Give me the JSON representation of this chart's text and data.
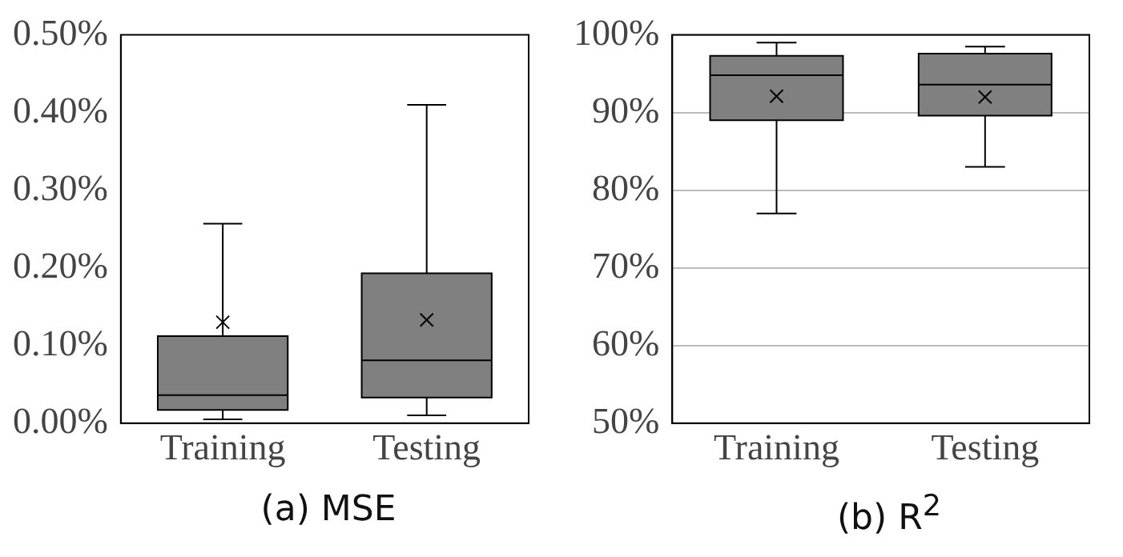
{
  "chart_data": [
    {
      "type": "box",
      "title": "(a)  MSE",
      "categories": [
        "Training",
        "Testing"
      ],
      "color": "#808080",
      "grid": false,
      "ylim": [
        0,
        0.5
      ],
      "yticks": [
        {
          "value": 0,
          "label": "0.00%"
        },
        {
          "value": 0.1,
          "label": "0.10%"
        },
        {
          "value": 0.2,
          "label": "0.20%"
        },
        {
          "value": 0.3,
          "label": "0.30%"
        },
        {
          "value": 0.4,
          "label": "0.40%"
        },
        {
          "value": 0.5,
          "label": "0.50%"
        }
      ],
      "boxes": [
        {
          "low": 0.005,
          "q1": 0.017,
          "median": 0.036,
          "q3": 0.112,
          "high": 0.257,
          "mean": 0.13
        },
        {
          "low": 0.01,
          "q1": 0.033,
          "median": 0.081,
          "q3": 0.193,
          "high": 0.41,
          "mean": 0.133
        }
      ]
    },
    {
      "type": "box",
      "title": "(b) R$^{2}$",
      "categories": [
        "Training",
        "Testing"
      ],
      "color": "#808080",
      "grid": "y",
      "ylim": [
        50,
        100
      ],
      "yticks": [
        {
          "value": 50,
          "label": "50%"
        },
        {
          "value": 60,
          "label": "60%"
        },
        {
          "value": 70,
          "label": "70%"
        },
        {
          "value": 80,
          "label": "80%"
        },
        {
          "value": 90,
          "label": "90%"
        },
        {
          "value": 100,
          "label": "100%"
        }
      ],
      "boxes": [
        {
          "low": 77,
          "q1": 89,
          "median": 94.8,
          "q3": 97.3,
          "high": 99,
          "mean": 92.1
        },
        {
          "low": 83,
          "q1": 89.6,
          "median": 93.6,
          "q3": 97.6,
          "high": 98.5,
          "mean": 92
        }
      ]
    }
  ]
}
